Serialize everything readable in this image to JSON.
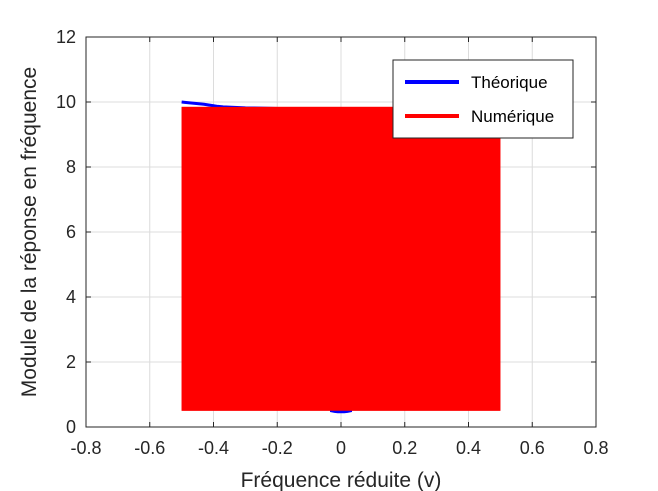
{
  "chart_data": {
    "type": "line",
    "xlabel": "Fréquence réduite (v)",
    "ylabel": "Module de la réponse en fréquence",
    "xlim": [
      -0.8,
      0.8
    ],
    "ylim": [
      0,
      12
    ],
    "xticks": [
      -0.8,
      -0.6,
      -0.4,
      -0.2,
      0,
      0.2,
      0.4,
      0.6,
      0.8
    ],
    "xtick_labels": [
      "-0.8",
      "-0.6",
      "-0.4",
      "-0.2",
      "0",
      "0.2",
      "0.4",
      "0.6",
      "0.8"
    ],
    "yticks": [
      0,
      2,
      4,
      6,
      8,
      10,
      12
    ],
    "ytick_labels": [
      "0",
      "2",
      "4",
      "6",
      "8",
      "10",
      "12"
    ],
    "grid": true,
    "legend_position": "top-right",
    "series": [
      {
        "name": "Théorique",
        "color": "#0000ff",
        "x": [
          -0.5,
          -0.49,
          -0.47,
          -0.45,
          -0.43,
          -0.41,
          -0.39,
          -0.37,
          -0.3,
          -0.2,
          -0.1,
          -0.03,
          -0.02,
          -0.01,
          0,
          0.01,
          0.02,
          0.03,
          0.1,
          0.2,
          0.3,
          0.37,
          0.39,
          0.41,
          0.43,
          0.45,
          0.47,
          0.49,
          0.5
        ],
        "y": [
          10.0,
          9.99,
          9.97,
          9.95,
          9.93,
          9.9,
          9.87,
          9.85,
          9.82,
          9.8,
          9.79,
          0.5,
          0.48,
          0.47,
          0.47,
          0.47,
          0.48,
          0.5,
          9.79,
          9.8,
          9.82,
          9.85,
          9.87,
          9.9,
          9.93,
          9.95,
          9.97,
          9.99,
          10.0
        ]
      },
      {
        "name": "Numérique",
        "color": "#ff0000",
        "x_range": [
          -0.5,
          0.5
        ],
        "y_range": [
          0.5,
          9.85
        ],
        "description_note": ""
      }
    ]
  }
}
